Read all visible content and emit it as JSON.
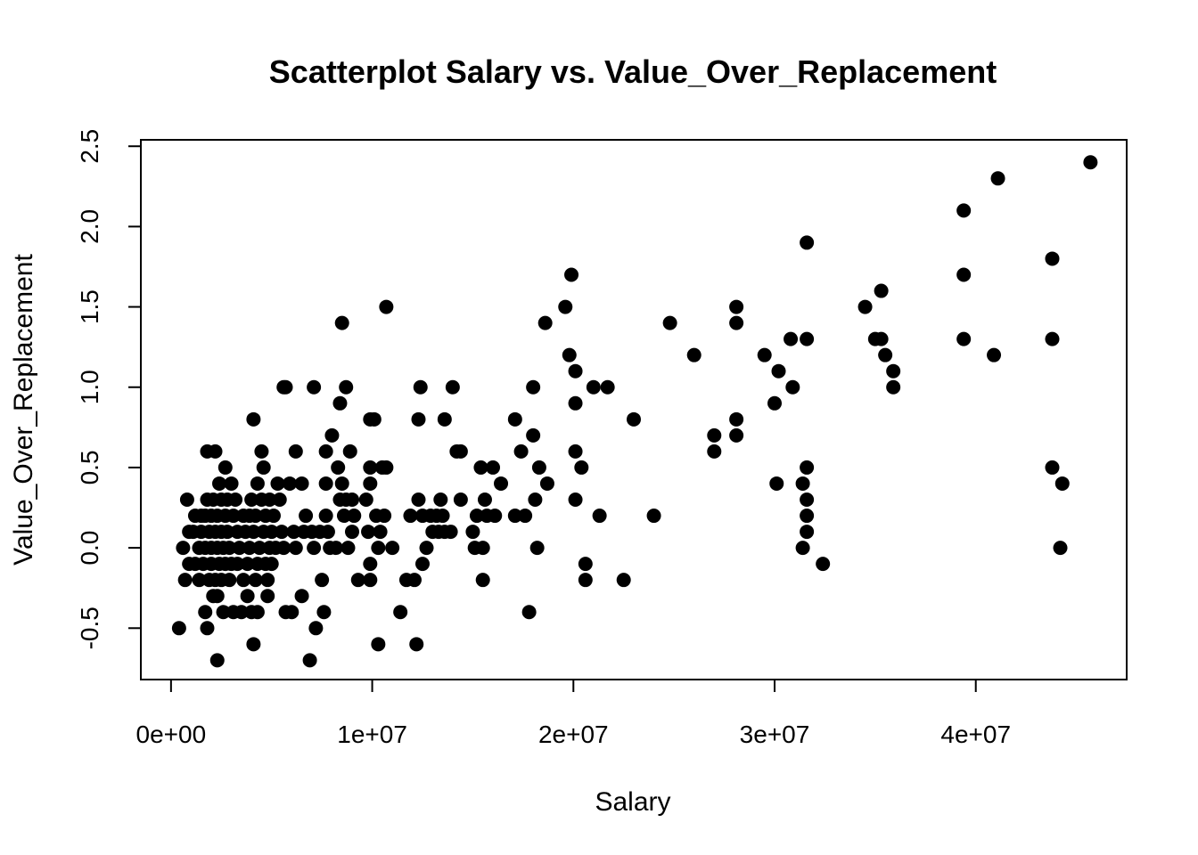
{
  "chart_data": {
    "type": "scatter",
    "title": "Scatterplot Salary vs. Value_Over_Replacement",
    "xlabel": "Salary",
    "ylabel": "Value_Over_Replacement",
    "xlim": [
      -1500000,
      47500000
    ],
    "ylim": [
      -0.82,
      2.54
    ],
    "xticks": [
      0,
      10000000,
      20000000,
      30000000,
      40000000
    ],
    "xtick_labels": [
      "0e+00",
      "1e+07",
      "2e+07",
      "3e+07",
      "4e+07"
    ],
    "yticks": [
      -0.5,
      0.0,
      0.5,
      1.0,
      1.5,
      2.0,
      2.5
    ],
    "ytick_labels": [
      "-0.5",
      "0.0",
      "0.5",
      "1.0",
      "1.5",
      "2.0",
      "2.5"
    ],
    "grid": false,
    "legend": "none",
    "marker_color": "#000000",
    "points": [
      [
        400000,
        -0.5
      ],
      [
        600000,
        0.0
      ],
      [
        700000,
        -0.2
      ],
      [
        800000,
        0.3
      ],
      [
        900000,
        -0.1
      ],
      [
        900000,
        0.1
      ],
      [
        1100000,
        0.1
      ],
      [
        1200000,
        -0.1
      ],
      [
        1200000,
        0.2
      ],
      [
        1400000,
        0.0
      ],
      [
        1400000,
        -0.2
      ],
      [
        1500000,
        0.1
      ],
      [
        1500000,
        0.2
      ],
      [
        1600000,
        -0.1
      ],
      [
        1700000,
        0.0
      ],
      [
        1700000,
        0.2
      ],
      [
        1700000,
        -0.4
      ],
      [
        1800000,
        0.6
      ],
      [
        1800000,
        0.3
      ],
      [
        1800000,
        -0.5
      ],
      [
        1900000,
        0.1
      ],
      [
        1900000,
        -0.2
      ],
      [
        2000000,
        0.0
      ],
      [
        2000000,
        0.2
      ],
      [
        2000000,
        -0.1
      ],
      [
        2100000,
        0.3
      ],
      [
        2100000,
        -0.3
      ],
      [
        2200000,
        0.1
      ],
      [
        2200000,
        0.6
      ],
      [
        2200000,
        -0.2
      ],
      [
        2300000,
        -0.7
      ],
      [
        2300000,
        0.0
      ],
      [
        2300000,
        -0.3
      ],
      [
        2300000,
        0.2
      ],
      [
        2400000,
        0.4
      ],
      [
        2400000,
        -0.1
      ],
      [
        2500000,
        0.1
      ],
      [
        2500000,
        0.3
      ],
      [
        2500000,
        -0.2
      ],
      [
        2600000,
        0.0
      ],
      [
        2600000,
        -0.4
      ],
      [
        2700000,
        0.2
      ],
      [
        2700000,
        0.5
      ],
      [
        2700000,
        -0.1
      ],
      [
        2800000,
        0.1
      ],
      [
        2800000,
        0.3
      ],
      [
        2900000,
        -0.2
      ],
      [
        2900000,
        0.0
      ],
      [
        3000000,
        0.4
      ],
      [
        3000000,
        -0.1
      ],
      [
        3100000,
        0.2
      ],
      [
        3100000,
        -0.4
      ],
      [
        3200000,
        0.3
      ],
      [
        3300000,
        0.1
      ],
      [
        3300000,
        -0.1
      ],
      [
        3400000,
        0.0
      ],
      [
        3500000,
        -0.4
      ],
      [
        3600000,
        0.2
      ],
      [
        3600000,
        -0.2
      ],
      [
        3700000,
        0.1
      ],
      [
        3800000,
        -0.3
      ],
      [
        3800000,
        -0.1
      ],
      [
        3900000,
        0.2
      ],
      [
        3900000,
        0.0
      ],
      [
        4000000,
        -0.4
      ],
      [
        4000000,
        0.3
      ],
      [
        4100000,
        -0.6
      ],
      [
        4100000,
        0.8
      ],
      [
        4100000,
        0.1
      ],
      [
        4200000,
        -0.2
      ],
      [
        4200000,
        0.2
      ],
      [
        4300000,
        0.4
      ],
      [
        4300000,
        -0.1
      ],
      [
        4300000,
        -0.4
      ],
      [
        4400000,
        0.0
      ],
      [
        4500000,
        0.3
      ],
      [
        4500000,
        0.6
      ],
      [
        4600000,
        0.1
      ],
      [
        4600000,
        0.5
      ],
      [
        4700000,
        -0.1
      ],
      [
        4700000,
        0.2
      ],
      [
        4800000,
        -0.3
      ],
      [
        4800000,
        -0.2
      ],
      [
        4900000,
        0.0
      ],
      [
        4900000,
        0.3
      ],
      [
        5000000,
        0.1
      ],
      [
        5000000,
        -0.1
      ],
      [
        5100000,
        0.2
      ],
      [
        5200000,
        0.0
      ],
      [
        5300000,
        0.4
      ],
      [
        5400000,
        0.3
      ],
      [
        5500000,
        0.1
      ],
      [
        5600000,
        0.0
      ],
      [
        5600000,
        1.0
      ],
      [
        5700000,
        -0.4
      ],
      [
        5700000,
        1.0
      ],
      [
        5900000,
        0.4
      ],
      [
        6000000,
        -0.4
      ],
      [
        6100000,
        0.1
      ],
      [
        6200000,
        0.6
      ],
      [
        6200000,
        0.0
      ],
      [
        6500000,
        0.4
      ],
      [
        6500000,
        -0.3
      ],
      [
        6600000,
        0.1
      ],
      [
        6700000,
        0.2
      ],
      [
        6900000,
        -0.7
      ],
      [
        7000000,
        0.1
      ],
      [
        7100000,
        1.0
      ],
      [
        7100000,
        0.0
      ],
      [
        7200000,
        -0.5
      ],
      [
        7400000,
        0.1
      ],
      [
        7500000,
        -0.2
      ],
      [
        7600000,
        -0.4
      ],
      [
        7700000,
        0.4
      ],
      [
        7700000,
        0.6
      ],
      [
        7700000,
        0.2
      ],
      [
        7800000,
        0.1
      ],
      [
        7900000,
        0.0
      ],
      [
        8000000,
        0.7
      ],
      [
        8200000,
        0.0
      ],
      [
        8300000,
        0.5
      ],
      [
        8400000,
        0.3
      ],
      [
        8400000,
        0.9
      ],
      [
        8500000,
        1.4
      ],
      [
        8500000,
        0.4
      ],
      [
        8600000,
        0.2
      ],
      [
        8700000,
        0.3
      ],
      [
        8700000,
        1.0
      ],
      [
        8800000,
        0.0
      ],
      [
        8900000,
        0.6
      ],
      [
        9000000,
        0.1
      ],
      [
        9000000,
        0.3
      ],
      [
        9100000,
        0.2
      ],
      [
        9300000,
        -0.2
      ],
      [
        9700000,
        0.3
      ],
      [
        9800000,
        0.1
      ],
      [
        9900000,
        0.5
      ],
      [
        9900000,
        0.8
      ],
      [
        9900000,
        0.4
      ],
      [
        9900000,
        -0.2
      ],
      [
        9900000,
        -0.1
      ],
      [
        10100000,
        0.8
      ],
      [
        10200000,
        0.2
      ],
      [
        10300000,
        0.0
      ],
      [
        10300000,
        -0.6
      ],
      [
        10400000,
        0.1
      ],
      [
        10500000,
        0.5
      ],
      [
        10600000,
        0.2
      ],
      [
        10700000,
        0.5
      ],
      [
        10700000,
        1.5
      ],
      [
        11000000,
        0.0
      ],
      [
        11400000,
        -0.4
      ],
      [
        11700000,
        -0.2
      ],
      [
        11900000,
        0.2
      ],
      [
        12100000,
        -0.2
      ],
      [
        12200000,
        -0.6
      ],
      [
        12300000,
        0.3
      ],
      [
        12300000,
        0.8
      ],
      [
        12400000,
        1.0
      ],
      [
        12500000,
        0.2
      ],
      [
        12500000,
        -0.1
      ],
      [
        12700000,
        0.0
      ],
      [
        12900000,
        0.2
      ],
      [
        13000000,
        0.1
      ],
      [
        13200000,
        0.2
      ],
      [
        13300000,
        0.1
      ],
      [
        13400000,
        0.3
      ],
      [
        13500000,
        0.2
      ],
      [
        13600000,
        0.8
      ],
      [
        13600000,
        0.1
      ],
      [
        13900000,
        0.1
      ],
      [
        14000000,
        1.0
      ],
      [
        14200000,
        0.6
      ],
      [
        14400000,
        0.3
      ],
      [
        14400000,
        0.6
      ],
      [
        15000000,
        0.1
      ],
      [
        15100000,
        0.0
      ],
      [
        15200000,
        0.2
      ],
      [
        15400000,
        0.5
      ],
      [
        15500000,
        -0.2
      ],
      [
        15500000,
        0.0
      ],
      [
        15600000,
        0.3
      ],
      [
        15700000,
        0.2
      ],
      [
        16000000,
        0.5
      ],
      [
        16100000,
        0.2
      ],
      [
        16400000,
        0.4
      ],
      [
        17100000,
        0.8
      ],
      [
        17100000,
        0.2
      ],
      [
        17400000,
        0.6
      ],
      [
        17600000,
        0.2
      ],
      [
        17800000,
        -0.4
      ],
      [
        18000000,
        1.0
      ],
      [
        18000000,
        0.7
      ],
      [
        18100000,
        0.3
      ],
      [
        18200000,
        0.0
      ],
      [
        18300000,
        0.5
      ],
      [
        18600000,
        1.4
      ],
      [
        18700000,
        0.4
      ],
      [
        19600000,
        1.5
      ],
      [
        19800000,
        1.2
      ],
      [
        19900000,
        1.7
      ],
      [
        20100000,
        0.9
      ],
      [
        20100000,
        0.6
      ],
      [
        20100000,
        0.3
      ],
      [
        20100000,
        1.1
      ],
      [
        20400000,
        0.5
      ],
      [
        20600000,
        -0.1
      ],
      [
        20600000,
        -0.2
      ],
      [
        21000000,
        1.0
      ],
      [
        21300000,
        0.2
      ],
      [
        21700000,
        1.0
      ],
      [
        22500000,
        -0.2
      ],
      [
        23000000,
        0.8
      ],
      [
        24000000,
        0.2
      ],
      [
        24800000,
        1.4
      ],
      [
        26000000,
        1.2
      ],
      [
        27000000,
        0.7
      ],
      [
        27000000,
        0.6
      ],
      [
        28100000,
        0.8
      ],
      [
        28100000,
        0.7
      ],
      [
        28100000,
        1.5
      ],
      [
        28100000,
        1.4
      ],
      [
        29500000,
        1.2
      ],
      [
        30000000,
        0.9
      ],
      [
        30100000,
        0.4
      ],
      [
        30200000,
        1.1
      ],
      [
        30800000,
        1.3
      ],
      [
        30900000,
        1.0
      ],
      [
        31400000,
        0.0
      ],
      [
        31400000,
        0.4
      ],
      [
        31600000,
        1.9
      ],
      [
        31600000,
        1.3
      ],
      [
        31600000,
        0.5
      ],
      [
        31600000,
        0.3
      ],
      [
        31600000,
        0.2
      ],
      [
        31600000,
        0.1
      ],
      [
        32400000,
        -0.1
      ],
      [
        34500000,
        1.5
      ],
      [
        35000000,
        1.3
      ],
      [
        35300000,
        1.6
      ],
      [
        35300000,
        1.3
      ],
      [
        35500000,
        1.2
      ],
      [
        35900000,
        1.1
      ],
      [
        35900000,
        1.0
      ],
      [
        39400000,
        2.1
      ],
      [
        39400000,
        1.7
      ],
      [
        39400000,
        1.3
      ],
      [
        40900000,
        1.2
      ],
      [
        41100000,
        2.3
      ],
      [
        43800000,
        1.8
      ],
      [
        43800000,
        1.3
      ],
      [
        43800000,
        0.5
      ],
      [
        44200000,
        0.0
      ],
      [
        44300000,
        0.4
      ],
      [
        45700000,
        2.4
      ]
    ]
  }
}
